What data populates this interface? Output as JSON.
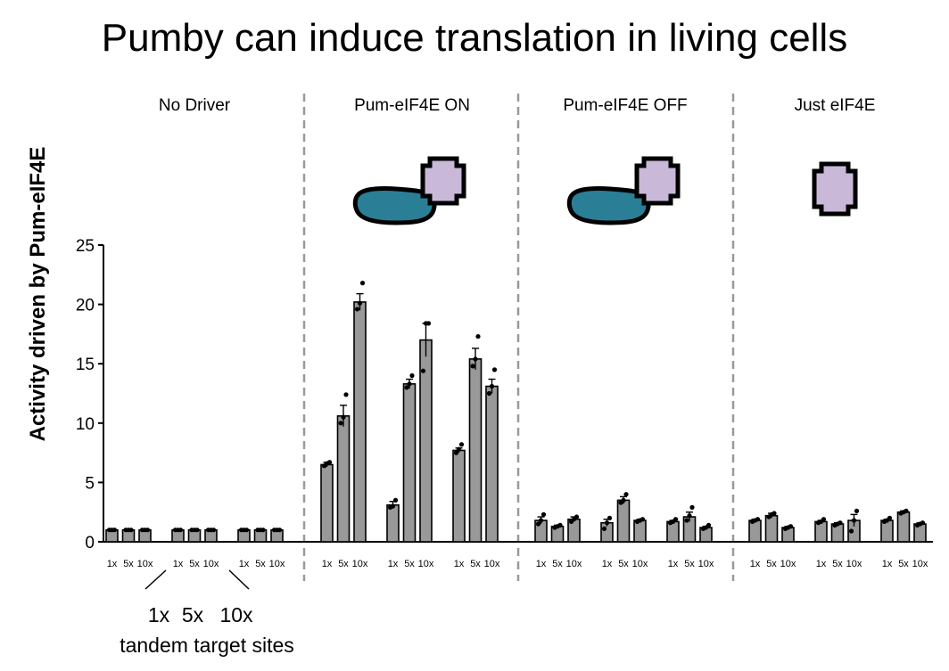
{
  "title": "Pumby can induce translation in living cells",
  "legend": {
    "line1": [
      "1x",
      "5x",
      "10x"
    ],
    "line2": "tandem target sites"
  },
  "colors": {
    "bar": "#999999",
    "divider": "#999999",
    "blob": "#2a7e95",
    "cross": "#c9b8d8"
  },
  "icons": [
    "pum-blob-icon",
    "eif4e-cross-icon"
  ],
  "chart_data": {
    "type": "bar",
    "ylabel": "Activity  driven by Pum-eIF4E",
    "ylim": [
      0,
      25
    ],
    "yticks": [
      0,
      5,
      10,
      15,
      20,
      25
    ],
    "categories": [
      "1x",
      "5x",
      "10x"
    ],
    "error_bars": true,
    "points_shown": true,
    "panels": [
      {
        "title": "No Driver",
        "groups": [
          {
            "values": [
              1.0,
              1.0,
              1.0
            ],
            "errors": [
              0.05,
              0.05,
              0.05
            ],
            "points": [
              [
                1.0,
                1.0,
                1.0
              ],
              [
                1.0,
                1.0,
                1.0
              ],
              [
                1.0,
                1.0,
                1.0
              ]
            ]
          },
          {
            "values": [
              1.0,
              1.0,
              1.0
            ],
            "errors": [
              0.05,
              0.05,
              0.05
            ],
            "points": [
              [
                1.0,
                1.0,
                1.0
              ],
              [
                1.0,
                1.0,
                1.0
              ],
              [
                1.0,
                1.0,
                1.0
              ]
            ]
          },
          {
            "values": [
              1.0,
              1.0,
              1.0
            ],
            "errors": [
              0.05,
              0.05,
              0.05
            ],
            "points": [
              [
                1.0,
                1.0,
                1.0
              ],
              [
                1.0,
                1.0,
                1.0
              ],
              [
                1.0,
                1.0,
                1.0
              ]
            ]
          }
        ]
      },
      {
        "title": "Pum-eIF4E ON",
        "groups": [
          {
            "values": [
              6.5,
              10.6,
              20.2
            ],
            "errors": [
              0.2,
              0.9,
              0.7
            ],
            "points": [
              [
                6.4,
                6.6,
                6.7
              ],
              [
                10.0,
                10.5,
                12.4
              ],
              [
                19.6,
                20.1,
                21.8
              ]
            ]
          },
          {
            "values": [
              3.1,
              13.3,
              17.0
            ],
            "errors": [
              0.3,
              0.4,
              1.4
            ],
            "points": [
              [
                2.9,
                3.0,
                3.5
              ],
              [
                13.0,
                13.3,
                14.0
              ],
              [
                14.4,
                18.4,
                18.4
              ]
            ]
          },
          {
            "values": [
              7.7,
              15.4,
              13.1
            ],
            "errors": [
              0.2,
              0.9,
              0.6
            ],
            "points": [
              [
                7.5,
                7.8,
                8.2
              ],
              [
                14.8,
                15.4,
                17.3
              ],
              [
                12.5,
                13.1,
                14.5
              ]
            ]
          }
        ]
      },
      {
        "title": "Pum-eIF4E OFF",
        "groups": [
          {
            "values": [
              1.8,
              1.3,
              1.9
            ],
            "errors": [
              0.3,
              0.1,
              0.2
            ],
            "points": [
              [
                1.5,
                1.8,
                2.3
              ],
              [
                1.2,
                1.3,
                1.4
              ],
              [
                1.7,
                1.9,
                2.1
              ]
            ]
          },
          {
            "values": [
              1.6,
              3.5,
              1.8
            ],
            "errors": [
              0.3,
              0.3,
              0.1
            ],
            "points": [
              [
                1.1,
                1.6,
                2.0
              ],
              [
                3.3,
                3.5,
                4.0
              ],
              [
                1.7,
                1.8,
                1.9
              ]
            ]
          },
          {
            "values": [
              1.7,
              2.1,
              1.2
            ],
            "errors": [
              0.1,
              0.4,
              0.1
            ],
            "points": [
              [
                1.6,
                1.7,
                1.9
              ],
              [
                1.8,
                2.2,
                2.9
              ],
              [
                1.1,
                1.2,
                1.4
              ]
            ]
          }
        ]
      },
      {
        "title": "Just eIF4E",
        "groups": [
          {
            "values": [
              1.8,
              2.2,
              1.2
            ],
            "errors": [
              0.1,
              0.2,
              0.1
            ],
            "points": [
              [
                1.7,
                1.8,
                1.9
              ],
              [
                2.1,
                2.3,
                2.4
              ],
              [
                1.1,
                1.2,
                1.3
              ]
            ]
          },
          {
            "values": [
              1.7,
              1.5,
              1.8
            ],
            "errors": [
              0.1,
              0.1,
              0.5
            ],
            "points": [
              [
                1.6,
                1.7,
                1.9
              ],
              [
                1.4,
                1.5,
                1.6
              ],
              [
                0.9,
                1.8,
                2.6
              ]
            ]
          },
          {
            "values": [
              1.8,
              2.5,
              1.5
            ],
            "errors": [
              0.1,
              0.1,
              0.1
            ],
            "points": [
              [
                1.7,
                1.8,
                2.0
              ],
              [
                2.4,
                2.5,
                2.6
              ],
              [
                1.4,
                1.5,
                1.6
              ]
            ]
          }
        ]
      }
    ]
  }
}
